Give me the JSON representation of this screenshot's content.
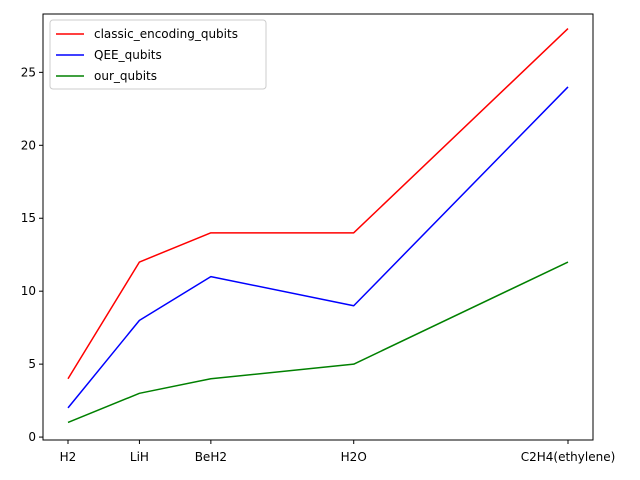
{
  "chart_data": {
    "type": "line",
    "title": "",
    "xlabel": "",
    "ylabel": "",
    "x": [
      0,
      1,
      2,
      4,
      7
    ],
    "categories": [
      "H2",
      "LiH",
      "BeH2",
      "H2O",
      "C2H4(ethylene)"
    ],
    "ylim": [
      -0.2,
      29
    ],
    "xlim": [
      -0.35,
      7.35
    ],
    "yticks": [
      0,
      5,
      10,
      15,
      20,
      25
    ],
    "grid": false,
    "legend_position": "top-left",
    "series": [
      {
        "name": "classic_encoding_qubits",
        "color": "#ff0000",
        "values": [
          4,
          12,
          14,
          14,
          28
        ]
      },
      {
        "name": "QEE_qubits",
        "color": "#0000ff",
        "values": [
          2,
          8,
          11,
          9,
          24
        ]
      },
      {
        "name": "our_qubits",
        "color": "#008000",
        "values": [
          1,
          3,
          4,
          5,
          12
        ]
      }
    ]
  }
}
